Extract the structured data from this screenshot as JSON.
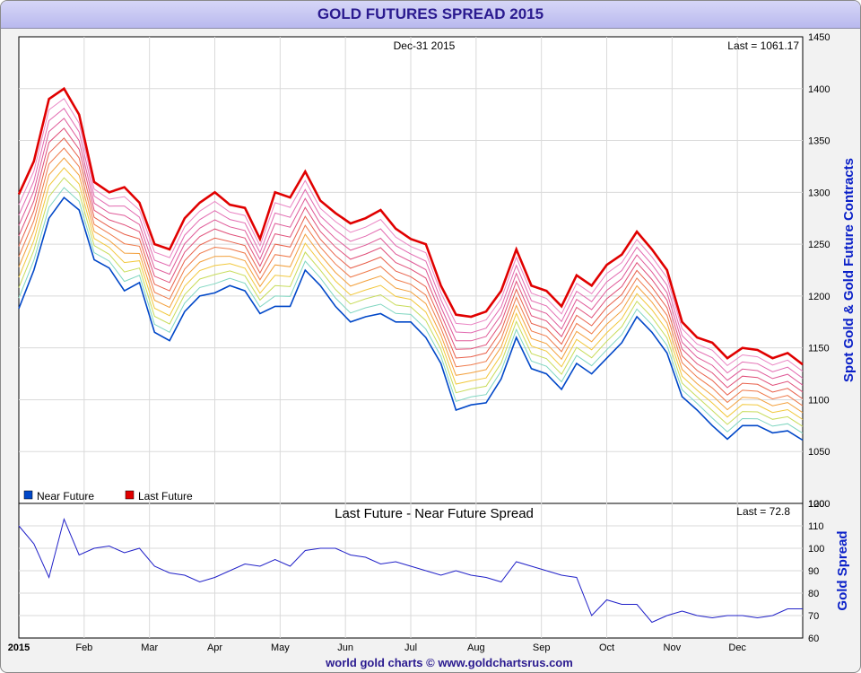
{
  "page": {
    "title": "GOLD FUTURES SPREAD 2015",
    "footer": "world gold charts © www.goldchartsrus.com"
  },
  "colors": {
    "near_future": "#0047c8",
    "last_future": "#e00000",
    "spread_line": "#2020c8",
    "grid": "#dadada",
    "axis_title": "#0a20c8",
    "title_text": "#2a1a8f"
  },
  "chart_data": [
    {
      "type": "line",
      "title": "",
      "date_label": "Dec-31  2015",
      "last_label": "Last = 1061.17",
      "ylabel": "Spot Gold & Gold Future Contracts",
      "ylim": [
        1000,
        1450
      ],
      "yticks": [
        1000,
        1050,
        1100,
        1150,
        1200,
        1250,
        1300,
        1350,
        1400,
        1450
      ],
      "legend": {
        "position": "bottom-left",
        "entries": [
          "Near Future",
          "Last Future"
        ]
      },
      "grid": true,
      "x": [
        "Jan-02",
        "Jan-09",
        "Jan-16",
        "Jan-23",
        "Jan-30",
        "Feb-06",
        "Feb-13",
        "Feb-20",
        "Feb-27",
        "Mar-06",
        "Mar-13",
        "Mar-20",
        "Mar-27",
        "Apr-03",
        "Apr-10",
        "Apr-17",
        "Apr-24",
        "May-01",
        "May-08",
        "May-15",
        "May-22",
        "May-29",
        "Jun-05",
        "Jun-12",
        "Jun-19",
        "Jun-26",
        "Jul-03",
        "Jul-10",
        "Jul-17",
        "Jul-24",
        "Jul-31",
        "Aug-07",
        "Aug-14",
        "Aug-21",
        "Aug-28",
        "Sep-04",
        "Sep-11",
        "Sep-18",
        "Sep-25",
        "Oct-02",
        "Oct-09",
        "Oct-16",
        "Oct-23",
        "Oct-30",
        "Nov-06",
        "Nov-13",
        "Nov-20",
        "Nov-27",
        "Dec-04",
        "Dec-11",
        "Dec-18",
        "Dec-24",
        "Dec-31"
      ],
      "series": [
        {
          "name": "Near Future",
          "values": [
            1188,
            1225,
            1275,
            1295,
            1283,
            1235,
            1227,
            1205,
            1213,
            1165,
            1157,
            1185,
            1200,
            1203,
            1210,
            1205,
            1183,
            1190,
            1190,
            1225,
            1210,
            1190,
            1175,
            1180,
            1183,
            1175,
            1175,
            1160,
            1135,
            1090,
            1095,
            1097,
            1120,
            1160,
            1130,
            1125,
            1110,
            1135,
            1125,
            1140,
            1155,
            1180,
            1165,
            1145,
            1103,
            1090,
            1075,
            1062,
            1075,
            1075,
            1068,
            1070,
            1061
          ]
        },
        {
          "name": "Last Future",
          "values": [
            1298,
            1330,
            1390,
            1400,
            1375,
            1310,
            1300,
            1305,
            1290,
            1250,
            1245,
            1275,
            1290,
            1300,
            1288,
            1285,
            1255,
            1300,
            1295,
            1320,
            1292,
            1280,
            1270,
            1275,
            1283,
            1265,
            1255,
            1250,
            1210,
            1182,
            1180,
            1185,
            1205,
            1245,
            1210,
            1205,
            1190,
            1220,
            1210,
            1230,
            1240,
            1262,
            1245,
            1225,
            1175,
            1160,
            1155,
            1140,
            1150,
            1148,
            1140,
            1145,
            1134
          ]
        }
      ],
      "intermediate_contracts": 10
    },
    {
      "type": "line",
      "title": "Last Future - Near Future Spread",
      "last_label": "Last = 72.8",
      "ylabel": "Gold Spread",
      "ylim": [
        60,
        120
      ],
      "yticks": [
        60,
        70,
        80,
        90,
        100,
        110,
        120
      ],
      "grid": true,
      "xticks": [
        "2015",
        "Feb",
        "Mar",
        "Apr",
        "May",
        "Jun",
        "Jul",
        "Aug",
        "Sep",
        "Oct",
        "Nov",
        "Dec"
      ],
      "series": [
        {
          "name": "",
          "values": [
            110,
            102,
            87,
            113,
            97,
            100,
            101,
            98,
            100,
            92,
            89,
            88,
            85,
            87,
            90,
            93,
            92,
            95,
            92,
            99,
            100,
            100,
            97,
            96,
            93,
            94,
            92,
            90,
            88,
            90,
            88,
            87,
            85,
            94,
            92,
            90,
            88,
            87,
            70,
            77,
            75,
            75,
            67,
            70,
            72,
            70,
            69,
            70,
            70,
            69,
            70,
            73,
            73
          ]
        }
      ]
    }
  ]
}
